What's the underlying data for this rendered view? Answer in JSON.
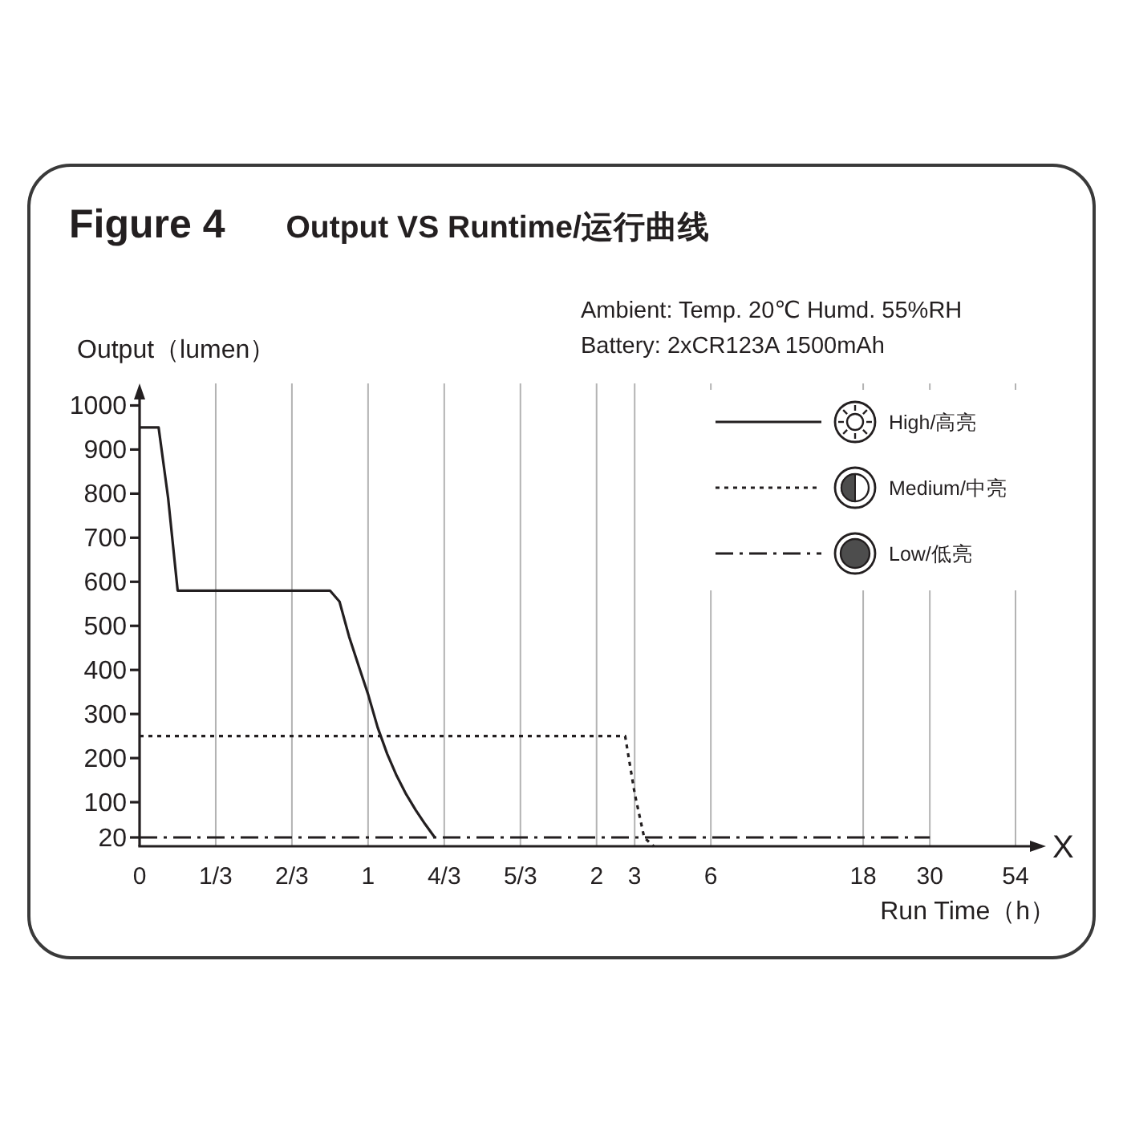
{
  "chart_data": {
    "type": "line",
    "title": "Figure 4",
    "subtitle": "Output VS Runtime/运行曲线",
    "xlabel": "Run Time（h）",
    "ylabel": "Output（lumen）",
    "annotations": [
      "Ambient: Temp. 20℃ Humd. 55%RH",
      "Battery: 2xCR123A 1500mAh",
      "X"
    ],
    "categories": [
      "0",
      null,
      null,
      null,
      null,
      null,
      null,
      null,
      "1/3",
      null,
      null,
      null,
      null,
      null,
      null,
      null,
      "2/3",
      null,
      null,
      null,
      null,
      null,
      null,
      null,
      "1",
      null,
      null,
      null,
      null,
      null,
      null,
      null,
      "4/3",
      null,
      null,
      null,
      null,
      null,
      null,
      null,
      "5/3",
      null,
      null,
      null,
      null,
      null,
      null,
      null,
      "2",
      null,
      null,
      null,
      "3",
      null,
      null,
      null,
      null,
      null,
      null,
      null,
      "6",
      null,
      null,
      null,
      null,
      null,
      null,
      null,
      null,
      null,
      null,
      null,
      null,
      null,
      null,
      null,
      "18",
      null,
      null,
      null,
      null,
      null,
      null,
      "30",
      null,
      null,
      null,
      null,
      null,
      null,
      null,
      null,
      "54"
    ],
    "ylim": [
      0,
      1050
    ],
    "yticks": [
      20,
      100,
      200,
      300,
      400,
      500,
      600,
      700,
      800,
      900,
      1000
    ],
    "grid": "x",
    "legend": "top right",
    "series": [
      {
        "name": "Low/低亮",
        "color": "#231f20",
        "line_style": "dashed",
        "values": [
          20,
          20,
          20,
          20,
          20,
          20,
          20,
          20,
          20,
          20,
          20,
          20,
          20,
          20,
          20,
          20,
          20,
          20,
          20,
          20,
          20,
          20,
          20,
          20,
          20,
          20,
          20,
          20,
          20,
          20,
          20,
          20,
          20,
          20,
          20,
          20,
          20,
          20,
          20,
          20,
          20,
          20,
          20,
          20,
          20,
          20,
          20,
          20,
          20,
          20,
          20,
          20,
          20,
          20,
          20,
          20,
          20,
          20,
          20,
          20,
          20,
          20,
          20,
          20,
          20,
          20,
          20,
          20,
          20,
          20,
          20,
          20,
          20,
          20,
          20,
          20,
          20,
          20,
          20,
          20,
          20,
          20,
          20,
          20,
          null,
          null,
          null,
          null,
          null,
          null,
          null,
          null,
          null
        ]
      },
      {
        "name": "Medium/中亮",
        "color": "#231f20",
        "line_style": "dotted",
        "values": [
          250,
          250,
          250,
          250,
          250,
          250,
          250,
          250,
          250,
          250,
          250,
          250,
          250,
          250,
          250,
          250,
          250,
          250,
          250,
          250,
          250,
          250,
          250,
          250,
          250,
          250,
          250,
          250,
          250,
          250,
          250,
          250,
          250,
          250,
          250,
          250,
          250,
          250,
          250,
          250,
          250,
          250,
          250,
          250,
          250,
          250,
          250,
          250,
          250,
          250,
          250,
          250,
          120,
          20,
          0,
          null,
          null,
          null,
          null,
          null,
          null,
          null,
          null,
          null,
          null,
          null,
          null,
          null,
          null,
          null,
          null,
          null,
          null,
          null,
          null,
          null,
          null,
          null,
          null,
          null,
          null,
          null,
          null,
          null,
          null,
          null,
          null,
          null,
          null,
          null,
          null,
          null,
          null
        ]
      },
      {
        "name": "High/高亮",
        "color": "#231f20",
        "line_style": "solid",
        "values": [
          950,
          950,
          950,
          790,
          580,
          580,
          580,
          580,
          580,
          580,
          580,
          580,
          580,
          580,
          580,
          580,
          580,
          580,
          580,
          580,
          580,
          555,
          476,
          410,
          345,
          270,
          210,
          160,
          118,
          82,
          50,
          20,
          null,
          null,
          null,
          null,
          null,
          null,
          null,
          null,
          null,
          null,
          null,
          null,
          null,
          null,
          null,
          null,
          null,
          null,
          null,
          null,
          null,
          null,
          null,
          null,
          null,
          null,
          null,
          null,
          null,
          null,
          null,
          null,
          null,
          null,
          null,
          null,
          null,
          null,
          null,
          null,
          null,
          null,
          null,
          null,
          null,
          null,
          null,
          null,
          null,
          null,
          null,
          null,
          null,
          null,
          null,
          null,
          null,
          null,
          null,
          null,
          null
        ]
      }
    ]
  }
}
